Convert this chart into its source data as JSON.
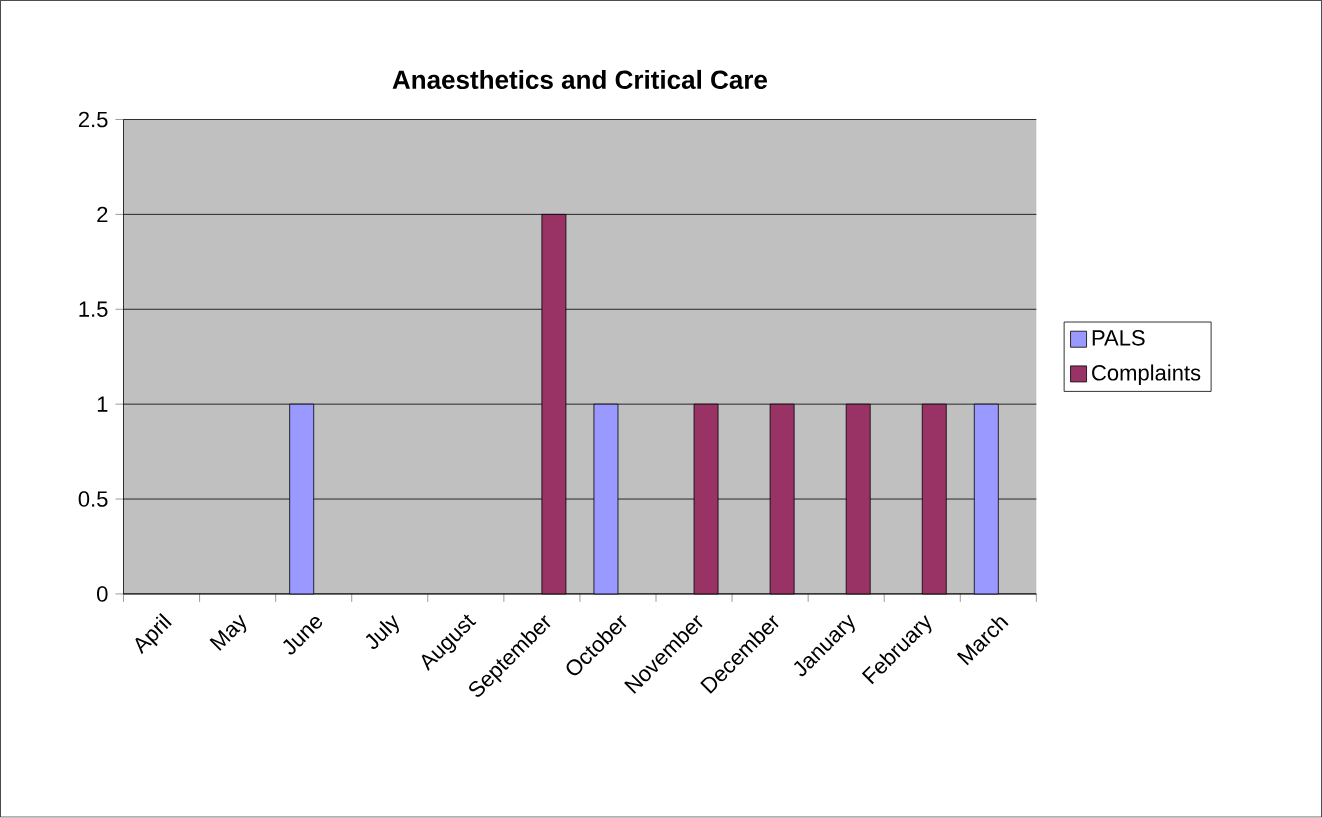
{
  "chart_data": {
    "type": "bar",
    "title": "Anaesthetics and Critical Care",
    "categories": [
      "April",
      "May",
      "June",
      "July",
      "August",
      "September",
      "October",
      "November",
      "December",
      "January",
      "February",
      "March"
    ],
    "series": [
      {
        "name": "PALS",
        "color": "#9999ff",
        "values": [
          null,
          null,
          1,
          null,
          null,
          null,
          1,
          null,
          null,
          null,
          null,
          1
        ]
      },
      {
        "name": "Complaints",
        "color": "#993366",
        "values": [
          null,
          null,
          null,
          null,
          null,
          2,
          null,
          1,
          1,
          1,
          1,
          null
        ]
      }
    ],
    "ylim": [
      0,
      2.5
    ],
    "yticks": [
      0,
      0.5,
      1,
      1.5,
      2,
      2.5
    ],
    "grid": "y",
    "legend": "right"
  }
}
